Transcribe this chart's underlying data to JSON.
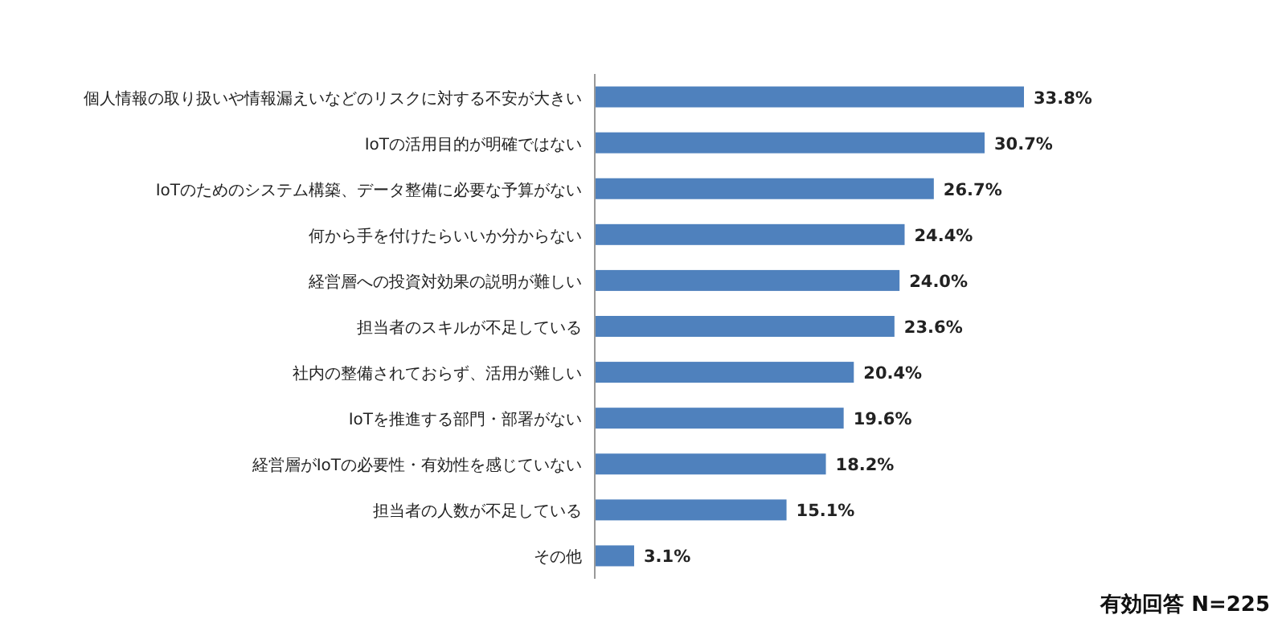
{
  "chart_data": {
    "type": "bar",
    "orientation": "horizontal",
    "categories": [
      "個人情報の取り扱いや情報漏えいなどのリスクに対する不安が大きい",
      "IoTの活用目的が明確ではない",
      "IoTのためのシステム構築、データ整備に必要な予算がない",
      "何から手を付けたらいいか分からない",
      "経営層への投資対効果の説明が難しい",
      "担当者のスキルが不足している",
      "社内の整備されておらず、活用が難しい",
      "IoTを推進する部門・部署がない",
      "経営層がIoTの必要性・有効性を感じていない",
      "担当者の人数が不足している",
      "その他"
    ],
    "values": [
      33.8,
      30.7,
      26.7,
      24.4,
      24.0,
      23.6,
      20.4,
      19.6,
      18.2,
      15.1,
      3.1
    ],
    "value_labels": [
      "33.8%",
      "30.7%",
      "26.7%",
      "24.4%",
      "24.0%",
      "23.6%",
      "20.4%",
      "19.6%",
      "18.2%",
      "15.1%",
      "3.1%"
    ],
    "color": "#4f81bd",
    "annotations": [
      "有効回答 N=225"
    ]
  }
}
